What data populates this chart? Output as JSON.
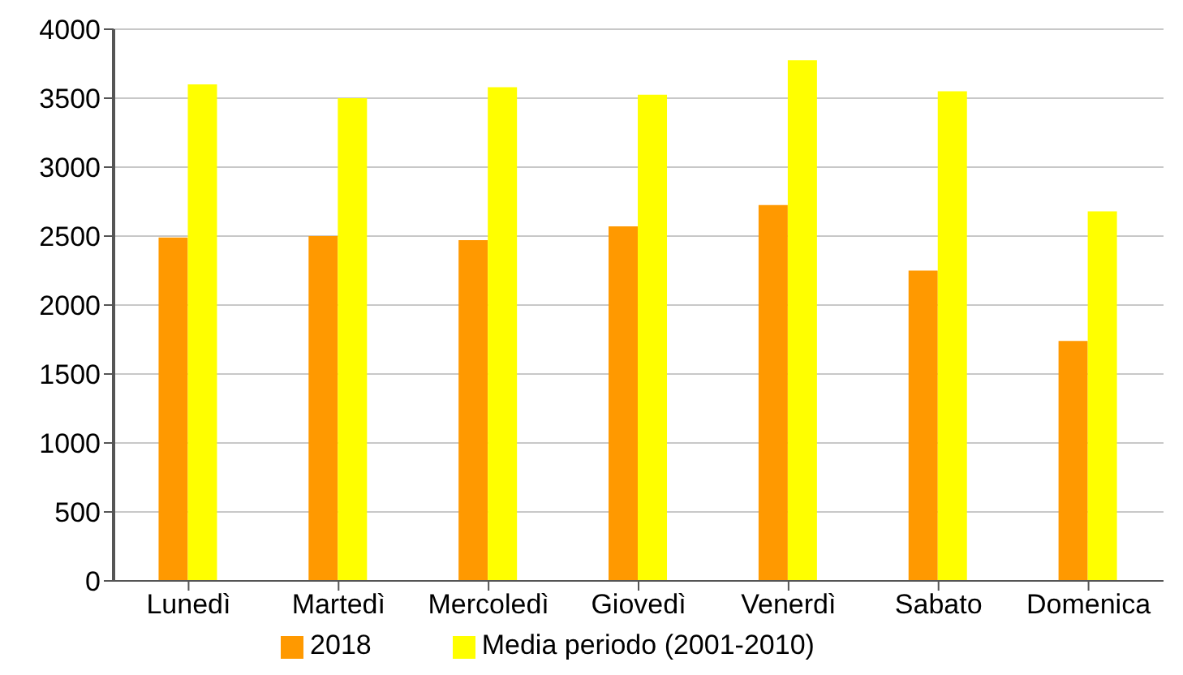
{
  "chart_data": {
    "type": "bar",
    "categories": [
      "Lunedì",
      "Martedì",
      "Mercoledì",
      "Giovedì",
      "Venerdì",
      "Sabato",
      "Domenica"
    ],
    "series": [
      {
        "name": "2018",
        "color": "#ff9900",
        "values": [
          2490,
          2500,
          2470,
          2570,
          2725,
          2250,
          1740
        ]
      },
      {
        "name": "Media periodo (2001-2010)",
        "color": "#ffff00",
        "values": [
          3600,
          3500,
          3580,
          3525,
          3775,
          3550,
          2680
        ]
      }
    ],
    "ylim": [
      0,
      4000
    ],
    "yticks": [
      0,
      500,
      1000,
      1500,
      2000,
      2500,
      3000,
      3500,
      4000
    ],
    "grid": "y",
    "legend": "bottom"
  }
}
